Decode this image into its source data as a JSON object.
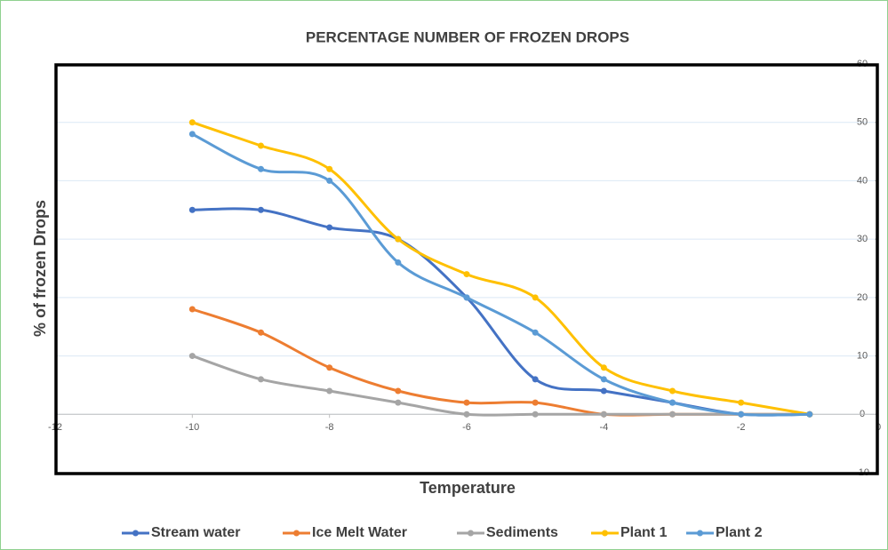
{
  "chart_data": {
    "type": "line",
    "title": "PERCENTAGE NUMBER OF FROZEN DROPS",
    "x_label": "Temperature",
    "y_label": "% of frozen Drops",
    "x": [
      -10,
      -9,
      -8,
      -7,
      -6,
      -5,
      -4,
      -3,
      -2,
      -1
    ],
    "series": [
      {
        "name": "Stream water",
        "color": "#4472c4",
        "values": [
          35,
          35,
          32,
          30,
          20,
          6,
          4,
          2,
          0,
          0
        ]
      },
      {
        "name": "Ice Melt Water",
        "color": "#ed7d31",
        "values": [
          18,
          14,
          8,
          4,
          2,
          2,
          0,
          0,
          0,
          0
        ]
      },
      {
        "name": "Sediments",
        "color": "#a5a5a5",
        "values": [
          10,
          6,
          4,
          2,
          0,
          0,
          0,
          0,
          0,
          0
        ]
      },
      {
        "name": "Plant 1",
        "color": "#ffc000",
        "values": [
          50,
          46,
          42,
          30,
          24,
          20,
          8,
          4,
          2,
          0
        ]
      },
      {
        "name": "Plant 2",
        "color": "#5b9bd5",
        "values": [
          48,
          42,
          40,
          26,
          20,
          14,
          6,
          2,
          0,
          0
        ]
      }
    ],
    "xlim": [
      -12,
      0
    ],
    "xticks": [
      -12,
      -10,
      -8,
      -6,
      -4,
      -2,
      0
    ],
    "ylim": [
      -10,
      60
    ],
    "yticks": [
      -10,
      0,
      10,
      20,
      30,
      40,
      50,
      60
    ],
    "grid": true,
    "smooth": true,
    "legend": "bottom"
  }
}
